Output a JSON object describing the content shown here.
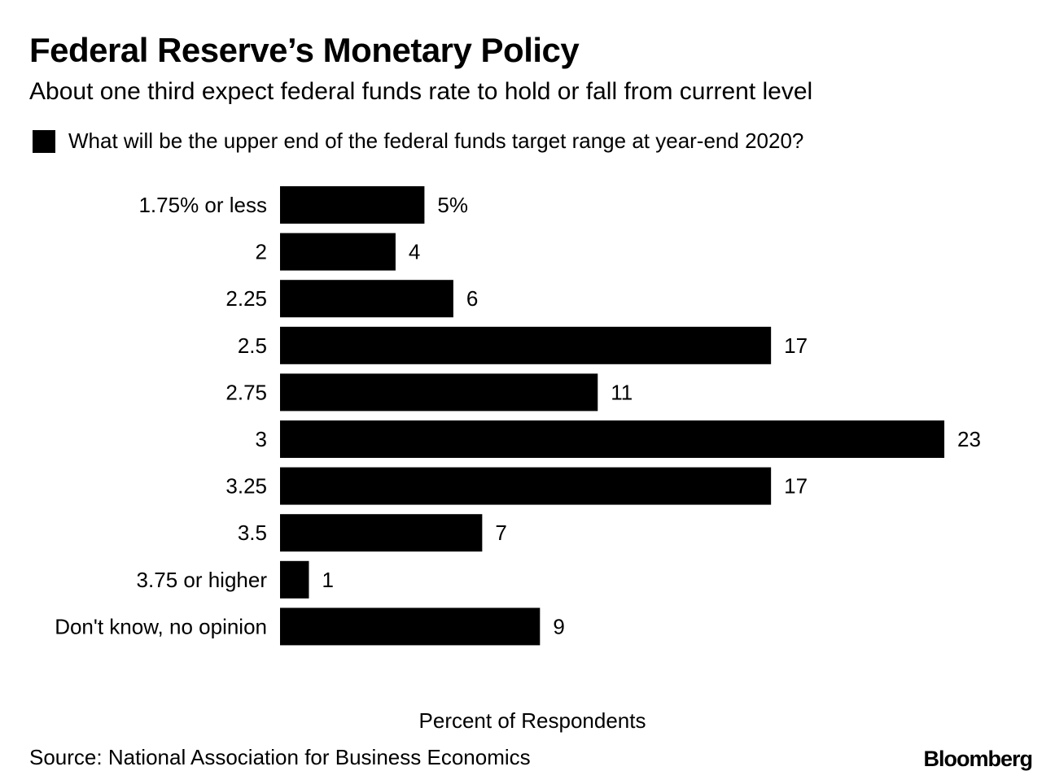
{
  "header": {
    "title": "Federal Reserve’s Monetary Policy",
    "subtitle": "About one third expect federal funds rate to hold or fall from current level"
  },
  "footer": {
    "source": "Source: National Association for Business Economics",
    "logo_text": "Bloomberg"
  },
  "chart_data": {
    "type": "bar",
    "orientation": "horizontal",
    "categories": [
      "1.75% or less",
      "2",
      "2.25",
      "2.5",
      "2.75",
      "3",
      "3.25",
      "3.5",
      "3.75 or higher",
      "Don't know, no opinion"
    ],
    "series": [
      {
        "name": "What will be the upper end of the federal funds target range at year-end 2020?",
        "values": [
          5,
          4,
          6,
          17,
          11,
          23,
          17,
          7,
          1,
          9
        ],
        "data_labels": [
          "5%",
          "4",
          "6",
          "17",
          "11",
          "23",
          "17",
          "7",
          "1",
          "9"
        ],
        "color": "#000000"
      }
    ],
    "xlabel": "Percent of Respondents",
    "xlim": [
      0,
      23
    ],
    "grid": false,
    "legend_position": "top-left"
  }
}
